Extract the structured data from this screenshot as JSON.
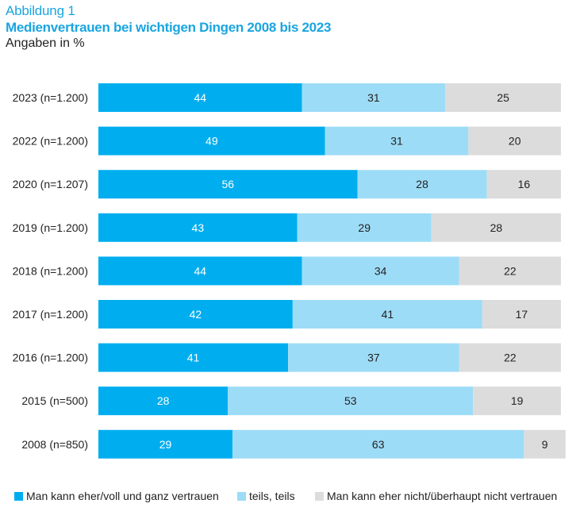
{
  "figure": {
    "label": "Abbildung 1",
    "title": "Medienvertrauen bei wichtigen Dingen 2008 bis 2023",
    "subtitle": "Angaben in %"
  },
  "colors": {
    "trust": "#00aeef",
    "partly": "#9ddcf7",
    "distrust": "#dcdcdc",
    "title": "#1aa5e0"
  },
  "chart_data": {
    "type": "bar",
    "orientation": "horizontal",
    "stacked": true,
    "categories": [
      "2023 (n=1.200)",
      "2022 (n=1.200)",
      "2020 (n=1.207)",
      "2019 (n=1.200)",
      "2018 (n=1.200)",
      "2017 (n=1.200)",
      "2016 (n=1.200)",
      "2015 (n=500)",
      "2008 (n=850)"
    ],
    "series": [
      {
        "name": "Man kann eher/voll und ganz vertrauen",
        "values": [
          44,
          49,
          56,
          43,
          44,
          42,
          41,
          28,
          29
        ]
      },
      {
        "name": "teils, teils",
        "values": [
          31,
          31,
          28,
          29,
          34,
          41,
          37,
          53,
          63
        ]
      },
      {
        "name": "Man kann eher nicht/überhaupt nicht vertrauen",
        "values": [
          25,
          20,
          16,
          28,
          22,
          17,
          22,
          19,
          9
        ]
      }
    ],
    "xlim": [
      0,
      100
    ],
    "legend_position": "bottom",
    "grid": false
  }
}
